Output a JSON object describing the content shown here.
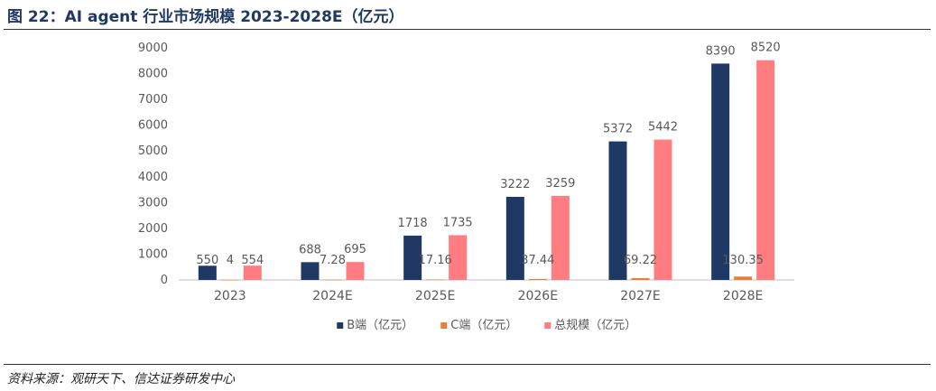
{
  "figure": {
    "title": "图 22：AI agent 行业市场规模 2023-2028E（亿元）",
    "source": "资料来源：观研天下、信达证券研发中心"
  },
  "chart_data": {
    "type": "bar",
    "categories": [
      "2023",
      "2024E",
      "2025E",
      "2026E",
      "2027E",
      "2028E"
    ],
    "series": [
      {
        "name": "B端（亿元）",
        "color": "#203864",
        "values": [
          550,
          688,
          1718,
          3222,
          5372,
          8390
        ],
        "labels": [
          "550",
          "688",
          "1718",
          "3222",
          "5372",
          "8390"
        ]
      },
      {
        "name": "C端（亿元）",
        "color": "#ED7D31",
        "values": [
          4,
          7.28,
          17.16,
          37.44,
          69.22,
          130.35
        ],
        "labels": [
          "4",
          "7.28",
          "17.16",
          "37.44",
          "69.22",
          "130.35"
        ]
      },
      {
        "name": "总规模（亿元）",
        "color": "#FF7C80",
        "values": [
          554,
          695,
          1735,
          3259,
          5442,
          8520
        ],
        "labels": [
          "554",
          "695",
          "1735",
          "3259",
          "5442",
          "8520"
        ]
      }
    ],
    "ylim": [
      0,
      9000
    ],
    "yticks": [
      0,
      1000,
      2000,
      3000,
      4000,
      5000,
      6000,
      7000,
      8000,
      9000
    ],
    "ytick_labels": [
      "0",
      "1000",
      "2000",
      "3000",
      "4000",
      "5000",
      "6000",
      "7000",
      "8000",
      "9000"
    ],
    "grid": false,
    "legend_position": "bottom-center",
    "xlabel": "",
    "ylabel": ""
  }
}
